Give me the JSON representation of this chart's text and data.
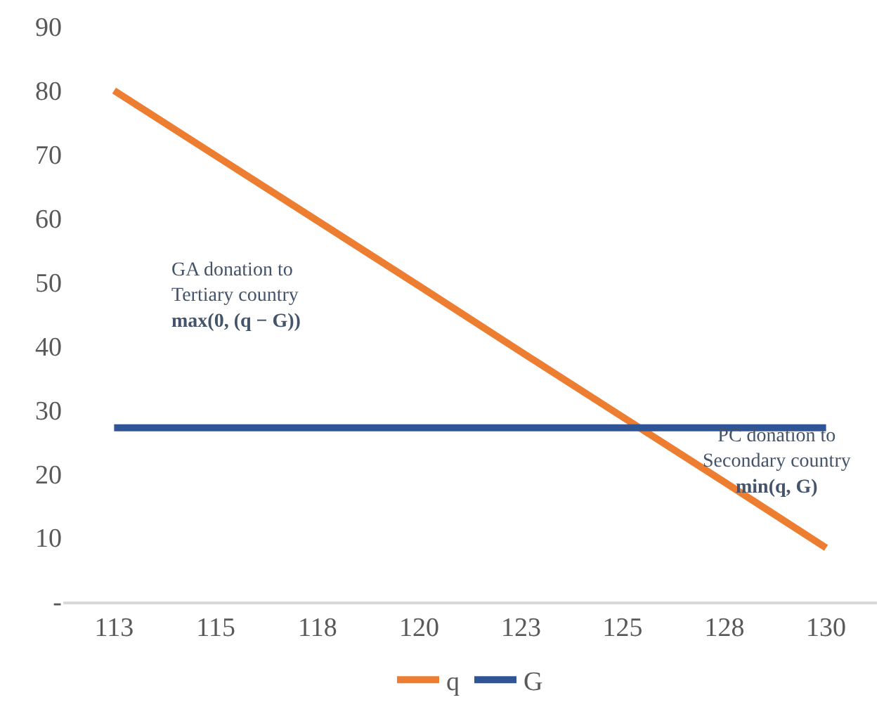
{
  "chart_data": {
    "type": "line",
    "categories": [
      "113",
      "115",
      "118",
      "120",
      "123",
      "125",
      "128",
      "130"
    ],
    "series": [
      {
        "name": "q",
        "color": "#ed7d31",
        "values": [
          80,
          69.8,
          59.6,
          49.4,
          39.1,
          28.9,
          18.7,
          8.4
        ]
      },
      {
        "name": "G",
        "color": "#2f5597",
        "values": [
          27.2,
          27.2,
          27.2,
          27.2,
          27.2,
          27.2,
          27.2,
          27.2
        ]
      }
    ],
    "ylim": [
      0,
      90
    ],
    "yticks": [
      {
        "value": 0,
        "label": "-"
      },
      10,
      20,
      30,
      40,
      50,
      60,
      70,
      80,
      90
    ],
    "annotations": [
      "GA donation to\nTertiary country\nmax(0, (q − G))",
      "PC donation to\nSecondary country\nmin(q, G)"
    ],
    "grid": false,
    "legend": "bottom",
    "line_style": "solid",
    "marker": "none"
  }
}
